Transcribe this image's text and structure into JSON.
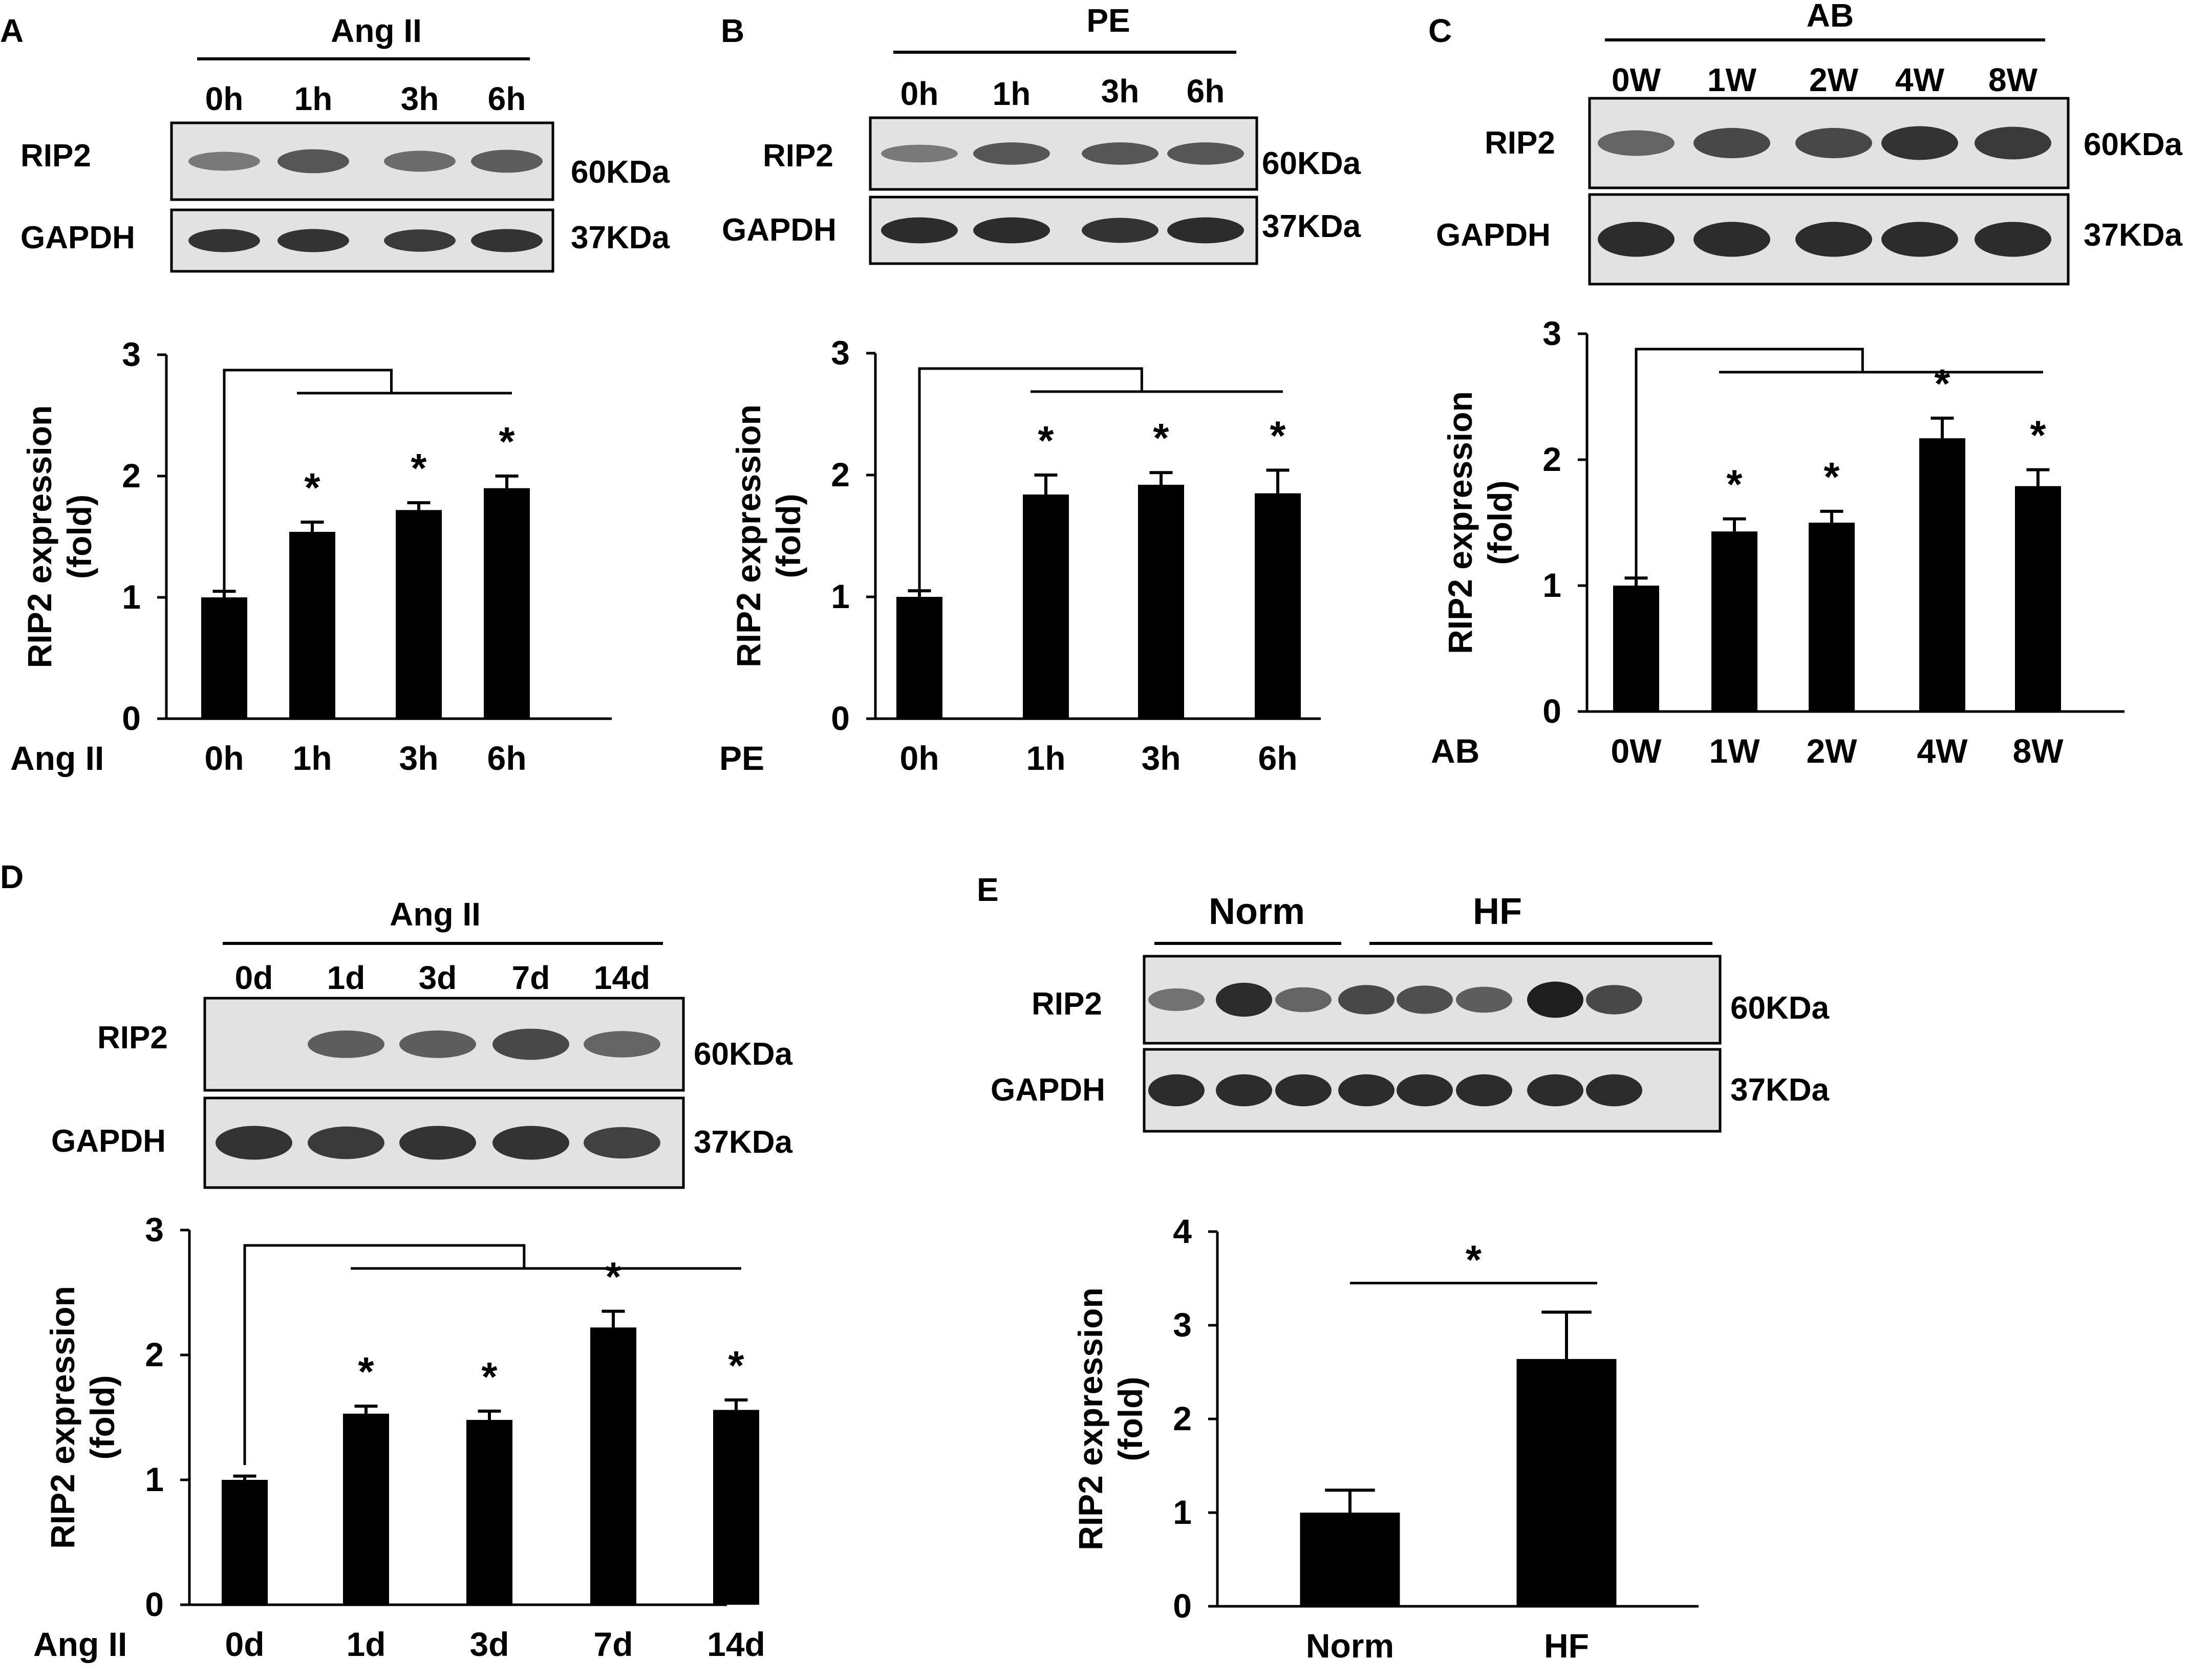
{
  "figure": {
    "panels": [
      {
        "letter": "A",
        "treatment": "Ang II",
        "lanes": [
          "0h",
          "1h",
          "3h",
          "6h"
        ],
        "blots": [
          {
            "protein": "RIP2",
            "kda": "60KDa",
            "intensities": [
              0.35,
              0.6,
              0.45,
              0.55
            ]
          },
          {
            "protein": "GAPDH",
            "kda": "37KDa",
            "intensities": [
              0.85,
              0.85,
              0.8,
              0.85
            ]
          }
        ]
      },
      {
        "letter": "B",
        "treatment": "PE",
        "lanes": [
          "0h",
          "1h",
          "3h",
          "6h"
        ],
        "blots": [
          {
            "protein": "RIP2",
            "kda": "60KDa",
            "intensities": [
              0.35,
              0.6,
              0.6,
              0.6
            ]
          },
          {
            "protein": "GAPDH",
            "kda": "37KDa",
            "intensities": [
              0.9,
              0.9,
              0.85,
              0.9
            ]
          }
        ]
      },
      {
        "letter": "C",
        "treatment": "AB",
        "lanes": [
          "0W",
          "1W",
          "2W",
          "4W",
          "8W"
        ],
        "blots": [
          {
            "protein": "RIP2",
            "kda": "60KDa",
            "intensities": [
              0.5,
              0.7,
              0.7,
              0.85,
              0.8
            ]
          },
          {
            "protein": "GAPDH",
            "kda": "37KDa",
            "intensities": [
              0.9,
              0.9,
              0.9,
              0.9,
              0.9
            ]
          }
        ]
      },
      {
        "letter": "D",
        "treatment": "Ang II",
        "lanes": [
          "0d",
          "1d",
          "3d",
          "7d",
          "14d"
        ],
        "blots": [
          {
            "protein": "RIP2",
            "kda": "60KDa",
            "intensities": [
              0.0,
              0.55,
              0.55,
              0.7,
              0.5
            ]
          },
          {
            "protein": "GAPDH",
            "kda": "37KDa",
            "intensities": [
              0.85,
              0.8,
              0.85,
              0.85,
              0.75
            ]
          }
        ]
      },
      {
        "letter": "E",
        "groups": [
          {
            "name": "Norm",
            "lanes": 3
          },
          {
            "name": "HF",
            "lanes": 5
          }
        ],
        "blots": [
          {
            "protein": "RIP2",
            "kda": "60KDa",
            "intensities": [
              0.4,
              0.9,
              0.5,
              0.7,
              0.65,
              0.55,
              1.0,
              0.7
            ]
          },
          {
            "protein": "GAPDH",
            "kda": "37KDa",
            "intensities": [
              0.9,
              0.9,
              0.9,
              0.9,
              0.9,
              0.9,
              0.9,
              0.9
            ]
          }
        ]
      }
    ]
  },
  "chart_data": [
    {
      "panel": "A",
      "type": "bar",
      "categories": [
        "0h",
        "1h",
        "3h",
        "6h"
      ],
      "x_prefix": "Ang II",
      "values": [
        1.0,
        1.54,
        1.72,
        1.9
      ],
      "errors": [
        0.05,
        0.08,
        0.06,
        0.1
      ],
      "significance": [
        "",
        "*",
        "*",
        "*"
      ],
      "ylabel": [
        "RIP2 expression",
        "(fold)"
      ],
      "ylim": [
        0,
        3
      ],
      "yticks": [
        0,
        1,
        2,
        3
      ]
    },
    {
      "panel": "B",
      "type": "bar",
      "categories": [
        "0h",
        "1h",
        "3h",
        "6h"
      ],
      "x_prefix": "PE",
      "values": [
        1.0,
        1.84,
        1.92,
        1.85
      ],
      "errors": [
        0.05,
        0.16,
        0.1,
        0.19
      ],
      "significance": [
        "",
        "*",
        "*",
        "*"
      ],
      "ylabel": [
        "RIP2 expression",
        "(fold)"
      ],
      "ylim": [
        0,
        3
      ],
      "yticks": [
        0,
        1,
        2,
        3
      ]
    },
    {
      "panel": "C",
      "type": "bar",
      "categories": [
        "0W",
        "1W",
        "2W",
        "4W",
        "8W"
      ],
      "x_prefix": "AB",
      "values": [
        1.0,
        1.43,
        1.5,
        2.17,
        1.79
      ],
      "errors": [
        0.06,
        0.1,
        0.09,
        0.16,
        0.13
      ],
      "significance": [
        "",
        "*",
        "*",
        "*",
        "*"
      ],
      "ylabel": [
        "RIP2  expression",
        "(fold)"
      ],
      "ylim": [
        0,
        3
      ],
      "yticks": [
        0,
        1,
        2,
        3
      ]
    },
    {
      "panel": "D",
      "type": "bar",
      "categories": [
        "0d",
        "1d",
        "3d",
        "7d",
        "14d"
      ],
      "x_prefix": "Ang II",
      "values": [
        1.0,
        1.53,
        1.48,
        2.22,
        1.56
      ],
      "errors": [
        0.03,
        0.06,
        0.07,
        0.13,
        0.08
      ],
      "significance": [
        "",
        "*",
        "*",
        "*",
        "*"
      ],
      "ylabel": [
        "RIP2 expression",
        "(fold)"
      ],
      "ylim": [
        0,
        3
      ],
      "yticks": [
        0,
        1,
        2,
        3
      ]
    },
    {
      "panel": "E",
      "type": "bar",
      "categories": [
        "Norm",
        "HF"
      ],
      "x_prefix": "",
      "values": [
        1.0,
        2.64
      ],
      "errors": [
        0.24,
        0.5
      ],
      "significance": [
        "",
        "*"
      ],
      "ylabel": [
        "RIP2 expression",
        "(fold)"
      ],
      "ylim": [
        0,
        4
      ],
      "yticks": [
        0,
        1,
        2,
        3,
        4
      ]
    }
  ]
}
